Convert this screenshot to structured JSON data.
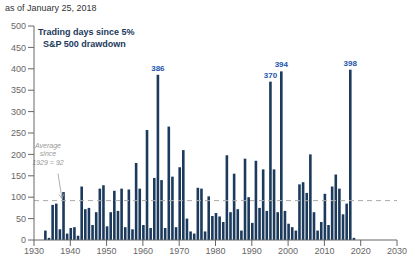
{
  "chart_data": {
    "type": "bar",
    "title": "Trading days since 5%\n  S&P 500 drawdown",
    "subtitle": "as of January 25, 2018",
    "x": [
      1933,
      1934,
      1935,
      1936,
      1937,
      1938,
      1939,
      1940,
      1941,
      1942,
      1943,
      1944,
      1945,
      1946,
      1947,
      1948,
      1949,
      1950,
      1951,
      1952,
      1953,
      1954,
      1955,
      1956,
      1957,
      1958,
      1959,
      1960,
      1961,
      1962,
      1963,
      1964,
      1965,
      1966,
      1967,
      1968,
      1969,
      1970,
      1971,
      1972,
      1973,
      1974,
      1975,
      1976,
      1977,
      1978,
      1979,
      1980,
      1981,
      1982,
      1983,
      1984,
      1985,
      1986,
      1987,
      1988,
      1989,
      1990,
      1991,
      1992,
      1993,
      1994,
      1995,
      1996,
      1997,
      1998,
      1999,
      2000,
      2001,
      2002,
      2003,
      2004,
      2005,
      2006,
      2007,
      2008,
      2009,
      2010,
      2011,
      2012,
      2013,
      2014,
      2015,
      2016,
      2017,
      2018
    ],
    "values": [
      22,
      5,
      82,
      85,
      25,
      112,
      15,
      28,
      30,
      10,
      125,
      72,
      75,
      35,
      65,
      120,
      128,
      32,
      65,
      115,
      68,
      120,
      30,
      118,
      25,
      180,
      120,
      35,
      257,
      28,
      145,
      386,
      140,
      28,
      265,
      148,
      30,
      170,
      210,
      50,
      20,
      15,
      122,
      120,
      20,
      102,
      56,
      63,
      55,
      42,
      198,
      65,
      155,
      72,
      22,
      190,
      100,
      40,
      185,
      75,
      165,
      68,
      370,
      165,
      65,
      394,
      68,
      38,
      30,
      22,
      130,
      135,
      110,
      200,
      65,
      22,
      42,
      108,
      35,
      125,
      153,
      120,
      60,
      85,
      398,
      5
    ],
    "color": "#1b3a5c",
    "xlim": [
      1930,
      2030
    ],
    "xticks": [
      1930,
      1940,
      1950,
      1960,
      1970,
      1980,
      1990,
      2000,
      2010,
      2020,
      2030
    ],
    "ylim": [
      0,
      500
    ],
    "yticks": [
      0,
      50,
      100,
      150,
      200,
      250,
      300,
      350,
      400,
      450,
      500
    ],
    "average": {
      "value": 92,
      "label": "Average\nsince\n1929 = 92",
      "color": "#aaaaaa",
      "line_style": "dashed"
    },
    "annotations": [
      {
        "x": 1964,
        "value": 386,
        "color": "#2255aa"
      },
      {
        "x": 1995,
        "value": 370,
        "color": "#2255aa"
      },
      {
        "x": 1998,
        "value": 394,
        "color": "#2255aa"
      },
      {
        "x": 2017,
        "value": 398,
        "color": "#2255aa"
      }
    ]
  }
}
